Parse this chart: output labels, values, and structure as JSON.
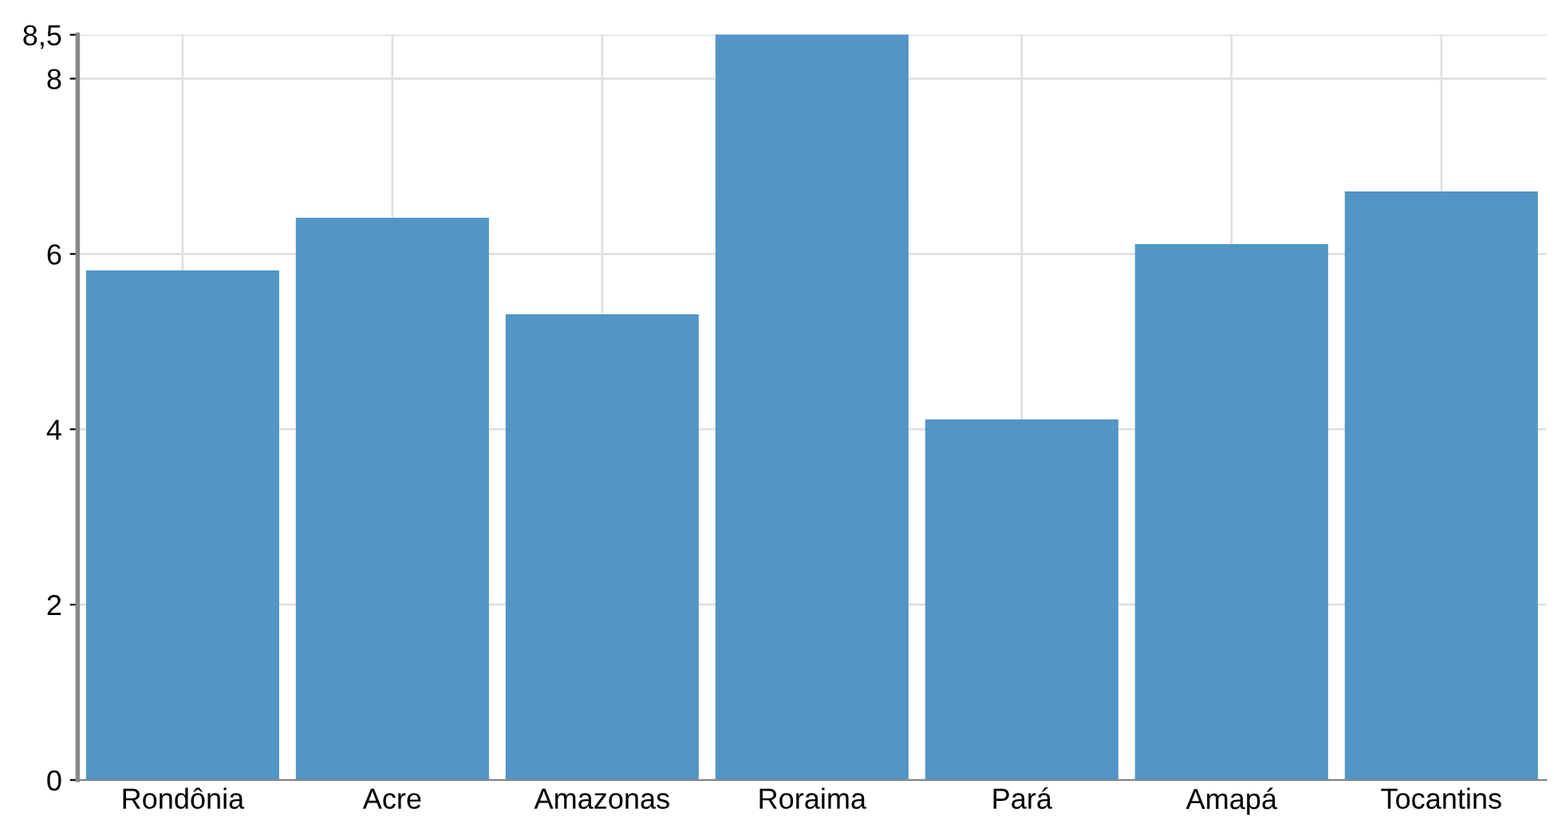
{
  "chart_data": {
    "type": "bar",
    "categories": [
      "Rondônia",
      "Acre",
      "Amazonas",
      "Roraima",
      "Pará",
      "Amapá",
      "Tocantins"
    ],
    "values": [
      5.8,
      6.4,
      5.3,
      8.5,
      4.1,
      6.1,
      6.7
    ],
    "color": "#5196c6",
    "ylim": [
      0,
      8.5
    ],
    "yticks": [
      0,
      2,
      4,
      6,
      8,
      {
        "value": 8.5,
        "label": "8,5"
      }
    ],
    "grid": true
  }
}
